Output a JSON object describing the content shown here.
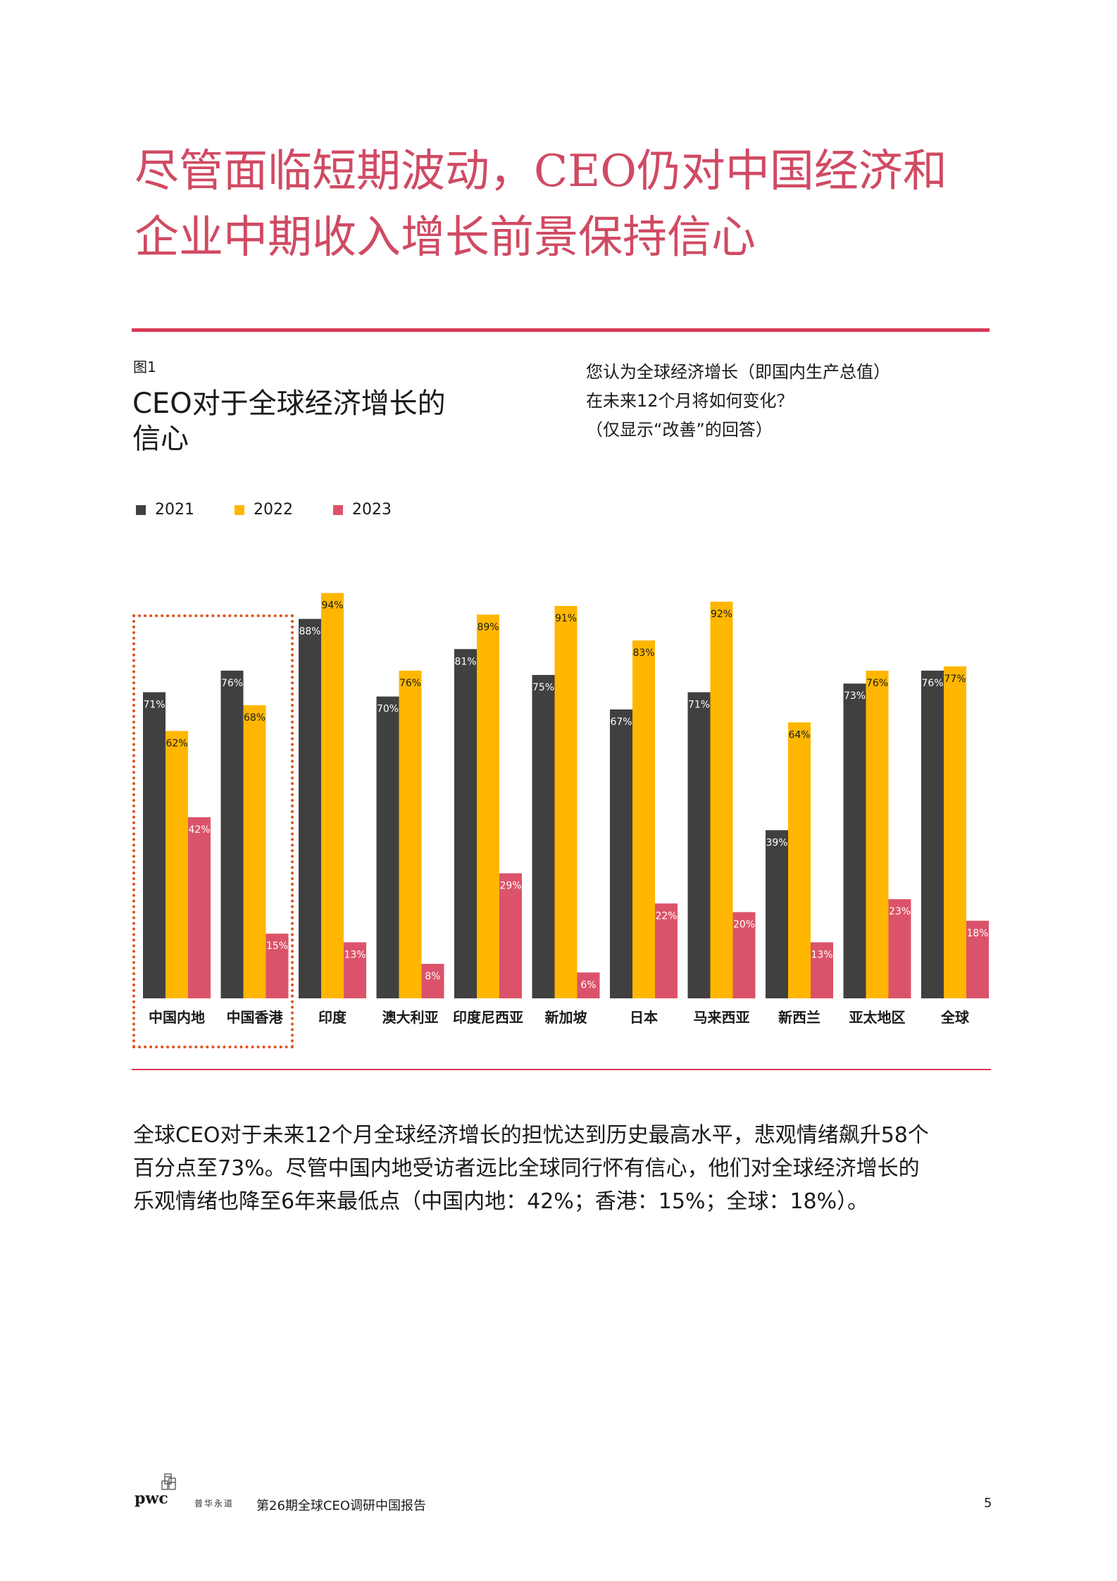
{
  "headline": {
    "line1": "尽管面临短期波动，CEO仍对中国经济和",
    "line2": "企业中期收入增长前景保持信心"
  },
  "figure": {
    "label": "图1",
    "title_line1": "CEO对于全球经济增长的",
    "title_line2": "信心",
    "question_line1": "您认为全球经济增长（即国内生产总值）",
    "question_line2": "在未来12个月将如何变化？",
    "question_line3": "（仅显示“改善”的回答）"
  },
  "chart_data": {
    "type": "bar",
    "categories": [
      "中国内地",
      "中国香港",
      "印度",
      "澳大利亚",
      "印度尼西亚",
      "新加坡",
      "日本",
      "马来西亚",
      "新西兰",
      "亚太地区",
      "全球"
    ],
    "series": [
      {
        "name": "2021",
        "color": "#404041",
        "values": [
          71,
          76,
          88,
          70,
          81,
          75,
          67,
          71,
          39,
          73,
          76
        ]
      },
      {
        "name": "2022",
        "color": "#ffb600",
        "values": [
          62,
          68,
          94,
          76,
          89,
          91,
          83,
          92,
          64,
          76,
          77
        ]
      },
      {
        "name": "2023",
        "color": "#db536a",
        "values": [
          42,
          15,
          13,
          8,
          29,
          6,
          22,
          20,
          13,
          23,
          18
        ]
      }
    ],
    "value_suffix": "%",
    "ylim": [
      0,
      100
    ],
    "grid": false,
    "legend_position": "top-left",
    "highlighted_categories": [
      "中国内地",
      "中国香港"
    ]
  },
  "body_text": {
    "line1": "全球CEO对于未来12个月全球经济增长的担忧达到历史最高水平，悲观情绪飙升58个",
    "line2": "百分点至73%。尽管中国内地受访者远比全球同行怀有信心，他们对全球经济增长的",
    "line3": "乐观情绪也降至6年来最低点（中国内地：42%；香港：15%；全球：18%）。"
  },
  "footer": {
    "logo_text": "pwc",
    "logo_sub": "普华永道",
    "report_name": "第26期全球CEO调研中国报告",
    "page_number": "5"
  }
}
